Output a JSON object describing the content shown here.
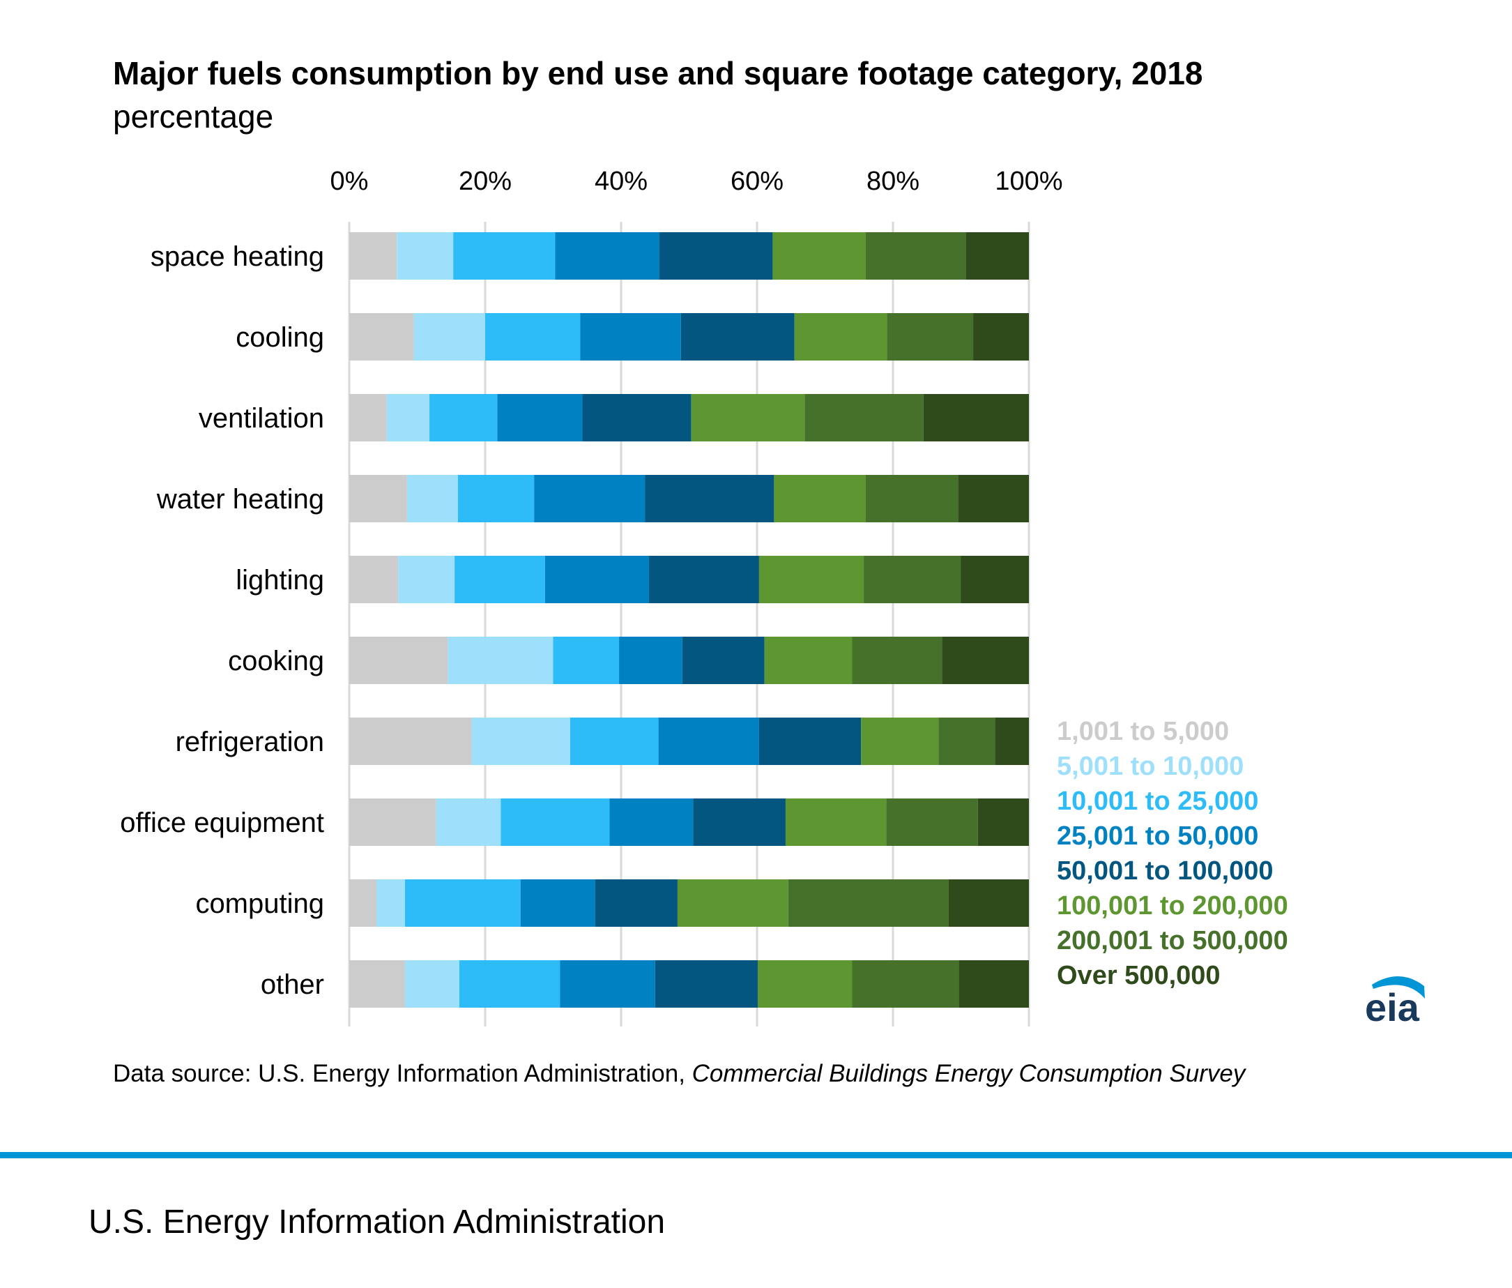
{
  "title": "Major fuels consumption by end use and square footage category, 2018",
  "subtitle": "percentage",
  "source_prefix": "Data source: U.S. Energy Information Administration, ",
  "source_italic": "Commercial Buildings Energy Consumption Survey",
  "footer": "U.S. Energy Information Administration",
  "logo_text": "eia",
  "chart_data": {
    "type": "bar",
    "orientation": "horizontal",
    "stacked": true,
    "xlim": [
      0,
      100
    ],
    "x_ticks": [
      "0%",
      "20%",
      "40%",
      "60%",
      "80%",
      "100%"
    ],
    "x_axis_position": "top",
    "grid": true,
    "legend_position": "right",
    "categories": [
      "space heating",
      "cooling",
      "ventilation",
      "water heating",
      "lighting",
      "cooking",
      "refrigeration",
      "office equipment",
      "computing",
      "other"
    ],
    "series": [
      {
        "name": "1,001 to 5,000",
        "color": "#cccccc",
        "values": [
          7,
          9.5,
          5.5,
          8.5,
          7.2,
          14.5,
          18,
          12.8,
          4,
          8.2
        ]
      },
      {
        "name": "5,001 to 10,000",
        "color": "#9ee0fb",
        "values": [
          8.3,
          10.5,
          6.3,
          7.5,
          8.3,
          15.5,
          14.5,
          9.5,
          4.2,
          8
        ]
      },
      {
        "name": "10,001 to 25,000",
        "color": "#2ebcf8",
        "values": [
          15,
          14,
          10,
          11.2,
          13.3,
          9.7,
          13,
          16,
          17,
          14.8
        ]
      },
      {
        "name": "25,001 to 50,000",
        "color": "#0081c1",
        "values": [
          15.3,
          14.8,
          12.5,
          16.3,
          15.3,
          9.3,
          14.8,
          12.3,
          11,
          14
        ]
      },
      {
        "name": "50,001 to 100,000",
        "color": "#03567f",
        "values": [
          16.7,
          16.7,
          16,
          19,
          16.2,
          12.1,
          15,
          13.6,
          12.1,
          15.1
        ]
      },
      {
        "name": "100,001 to 200,000",
        "color": "#5e9732",
        "values": [
          13.7,
          13.6,
          16.7,
          13.5,
          15.4,
          12.9,
          11.4,
          14.8,
          16.3,
          13.9
        ]
      },
      {
        "name": "200,001 to 500,000",
        "color": "#46712a",
        "values": [
          14.7,
          12.7,
          17.5,
          13.6,
          14.3,
          13.2,
          8.3,
          13.5,
          23.6,
          15.7
        ]
      },
      {
        "name": "Over 500,000",
        "color": "#2f4b1b",
        "values": [
          9.3,
          8.2,
          15.5,
          10.4,
          10,
          12.8,
          5,
          7.5,
          11.8,
          10.3
        ]
      }
    ]
  }
}
